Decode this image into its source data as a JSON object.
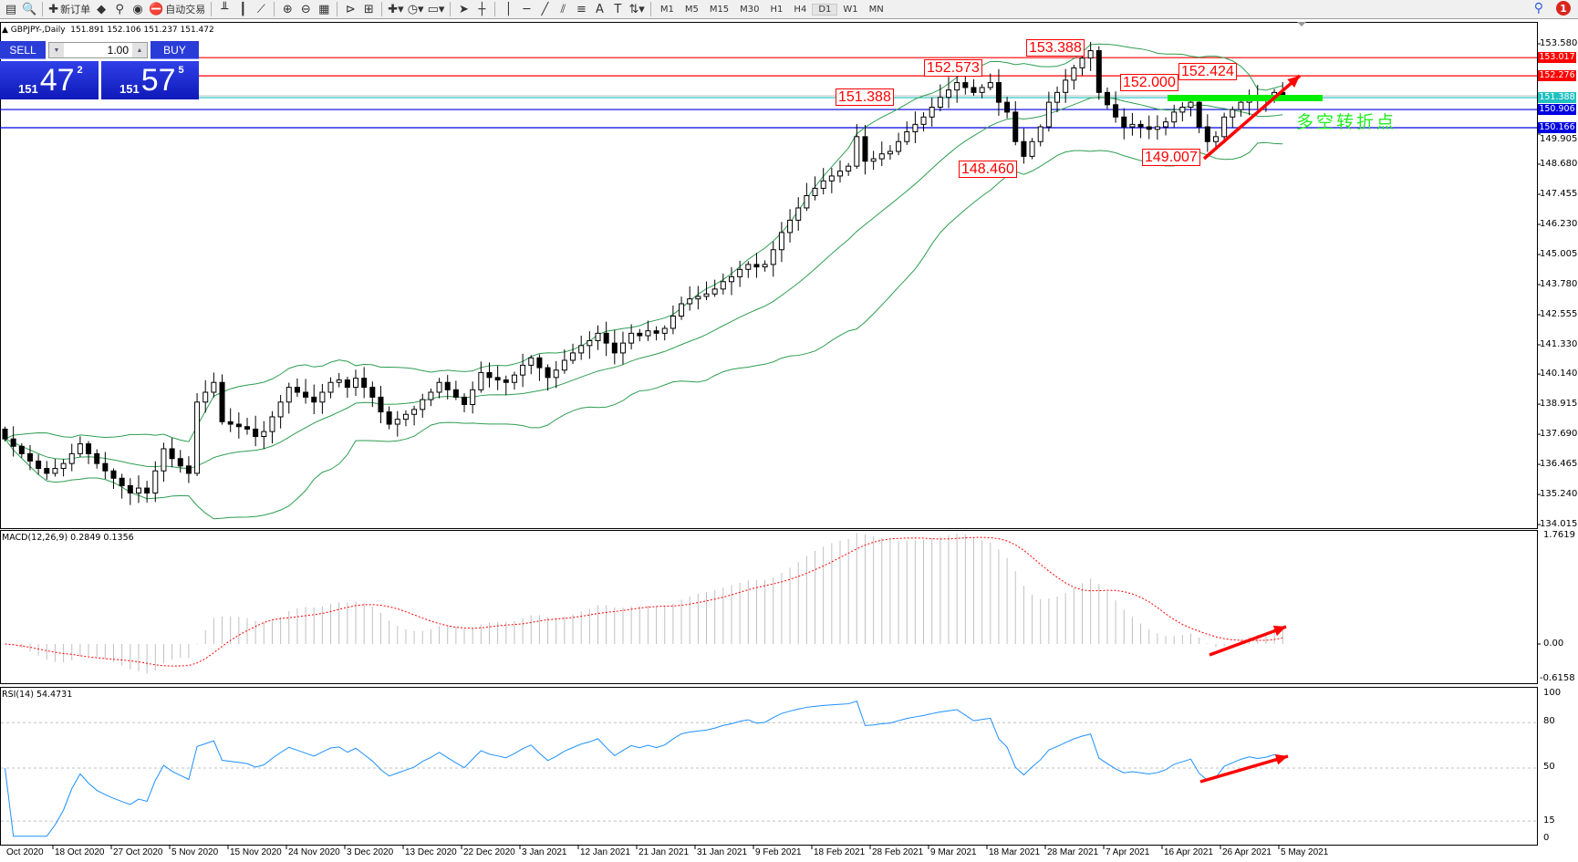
{
  "toolbar": {
    "items": [
      {
        "icon": "new-chart-icon",
        "glyph": "▤"
      },
      {
        "icon": "zoom-profile-icon",
        "glyph": "🔍"
      },
      {
        "sep": true
      },
      {
        "icon": "new-order-icon",
        "glyph": "✚",
        "label": "新订单"
      },
      {
        "icon": "data-window-icon",
        "glyph": "◆"
      },
      {
        "icon": "navigator-icon",
        "glyph": "⚲"
      },
      {
        "icon": "signals-icon",
        "glyph": "◉"
      },
      {
        "icon": "autotrading-icon",
        "glyph": "⛔",
        "label": "自动交易"
      },
      {
        "sep": true
      },
      {
        "icon": "bar-chart-icon",
        "glyph": "╨"
      },
      {
        "icon": "candlestick-icon",
        "glyph": "┃"
      },
      {
        "icon": "line-chart-icon",
        "glyph": "⟋"
      },
      {
        "sep": true
      },
      {
        "icon": "zoom-in-icon",
        "glyph": "⊕"
      },
      {
        "icon": "zoom-out-icon",
        "glyph": "⊖"
      },
      {
        "icon": "tile-windows-icon",
        "glyph": "▦"
      },
      {
        "sep": true
      },
      {
        "icon": "chart-shift-icon",
        "glyph": "⊳"
      },
      {
        "icon": "autoscroll-icon",
        "glyph": "⊞"
      },
      {
        "sep": true
      },
      {
        "icon": "indicators-icon",
        "glyph": "✚▾"
      },
      {
        "icon": "periods-icon",
        "glyph": "◷▾"
      },
      {
        "icon": "templates-icon",
        "glyph": "▭▾"
      },
      {
        "sep": true
      },
      {
        "icon": "cursor-icon",
        "glyph": "➤"
      },
      {
        "icon": "crosshair-icon",
        "glyph": "┼"
      },
      {
        "sep": true
      },
      {
        "icon": "vertical-line-icon",
        "glyph": "│"
      },
      {
        "icon": "horizontal-line-icon",
        "glyph": "─"
      },
      {
        "icon": "trendline-icon",
        "glyph": "╱"
      },
      {
        "icon": "equidistant-channel-icon",
        "glyph": "⫽"
      },
      {
        "icon": "fibonacci-icon",
        "glyph": "≡"
      },
      {
        "icon": "text-icon",
        "glyph": "A"
      },
      {
        "icon": "text-label-icon",
        "glyph": "T"
      },
      {
        "icon": "arrows-icon",
        "glyph": "⇅▾"
      },
      {
        "sep": true
      }
    ],
    "timeframes": [
      "M1",
      "M5",
      "M15",
      "M30",
      "H1",
      "H4",
      "D1",
      "W1",
      "MN"
    ],
    "active_timeframe": "D1",
    "notification_count": "1"
  },
  "chart": {
    "header": "▲ GBPJPY-,Daily  151.891 152.106 151.237 151.472",
    "one_click": {
      "sell_label": "SELL",
      "buy_label": "BUY",
      "lot": "1.00",
      "sell": {
        "prefix": "151",
        "big": "47",
        "sup": "2"
      },
      "buy": {
        "prefix": "151",
        "big": "57",
        "sup": "5"
      }
    },
    "price_axis": [
      "153.580",
      "149.905",
      "148.680",
      "147.455",
      "146.230",
      "145.005",
      "143.780",
      "142.555",
      "141.330",
      "140.140",
      "138.915",
      "137.690",
      "136.465",
      "135.240",
      "134.015"
    ],
    "hlines": [
      {
        "price": "153.017",
        "color": "#ff0000"
      },
      {
        "price": "152.276",
        "color": "#ff0000"
      },
      {
        "price": "151.388",
        "color": "#20c0c0"
      },
      {
        "price": "150.906",
        "color": "#0000e0"
      },
      {
        "price": "150.166",
        "color": "#0000e0"
      }
    ],
    "annotations": [
      "153.388",
      "152.573",
      "151.388",
      "152.000",
      "152.424",
      "148.460",
      "149.007"
    ],
    "note": "多空转折点",
    "time_axis": [
      "Oct 2020",
      "18 Oct 2020",
      "27 Oct 2020",
      "5 Nov 2020",
      "15 Nov 2020",
      "24 Nov 2020",
      "3 Dec 2020",
      "13 Dec 2020",
      "22 Dec 2020",
      "3 Jan 2021",
      "12 Jan 2021",
      "21 Jan 2021",
      "31 Jan 2021",
      "9 Feb 2021",
      "18 Feb 2021",
      "28 Feb 2021",
      "9 Mar 2021",
      "18 Mar 2021",
      "28 Mar 2021",
      "7 Apr 2021",
      "16 Apr 2021",
      "26 Apr 2021",
      "5 May 2021"
    ],
    "colors": {
      "bands": "#2e9e50",
      "macd_hist": "#c0c0c0",
      "signal": "#ff0000",
      "rsi": "#1e90ff",
      "arrow": "#ff0000",
      "zone": "#00ee00"
    }
  },
  "macd": {
    "label": "MACD(12,26,9) 0.2849 0.1356",
    "axis": [
      "1.7619",
      "0.00",
      "-0.6158"
    ]
  },
  "rsi": {
    "label": "RSI(14) 54.4731",
    "axis": [
      "100",
      "80",
      "50",
      "15",
      "0"
    ]
  },
  "chart_data": {
    "type": "candlestick",
    "symbol": "GBPJPY",
    "timeframe": "Daily",
    "ylim": [
      134.015,
      153.58
    ],
    "closes": [
      137.5,
      137.2,
      136.9,
      136.6,
      136.3,
      136.1,
      136.3,
      136.5,
      136.9,
      137.3,
      136.9,
      136.5,
      136.2,
      135.9,
      135.6,
      135.3,
      135.5,
      135.3,
      136.2,
      137.1,
      136.7,
      136.4,
      136.1,
      139.0,
      139.4,
      139.8,
      138.2,
      138.1,
      138.0,
      137.9,
      137.6,
      137.8,
      138.4,
      139.0,
      139.6,
      139.4,
      139.2,
      139.0,
      139.4,
      139.8,
      139.9,
      139.6,
      139.97,
      139.6,
      139.2,
      138.6,
      138.1,
      138.3,
      138.5,
      138.7,
      139.1,
      139.4,
      139.8,
      139.5,
      139.2,
      138.9,
      139.5,
      140.2,
      140.0,
      139.9,
      139.8,
      140.1,
      140.5,
      140.8,
      140.4,
      140.0,
      140.3,
      140.7,
      141.0,
      141.3,
      141.5,
      141.8,
      141.4,
      141.0,
      141.4,
      141.8,
      141.7,
      141.9,
      141.8,
      142.0,
      142.5,
      143.0,
      143.2,
      143.3,
      143.4,
      143.6,
      143.9,
      144.1,
      144.4,
      144.6,
      144.5,
      144.6,
      145.2,
      145.9,
      146.4,
      146.9,
      147.4,
      147.7,
      148.0,
      148.2,
      148.4,
      148.6,
      149.8,
      148.8,
      148.9,
      149.1,
      149.2,
      149.6,
      150.0,
      150.3,
      150.6,
      151.0,
      151.4,
      151.7,
      152.0,
      151.8,
      151.6,
      151.8,
      152.0,
      151.2,
      150.8,
      149.6,
      149.0,
      149.6,
      150.2,
      151.2,
      151.6,
      152.1,
      152.6,
      153.0,
      153.3,
      151.6,
      151.1,
      150.6,
      150.2,
      150.3,
      150.2,
      150.1,
      150.2,
      150.4,
      150.8,
      151.0,
      151.2,
      150.2,
      149.6,
      149.8,
      150.6,
      150.9,
      151.2,
      151.4,
      151.3,
      151.4,
      151.6,
      151.472
    ]
  }
}
